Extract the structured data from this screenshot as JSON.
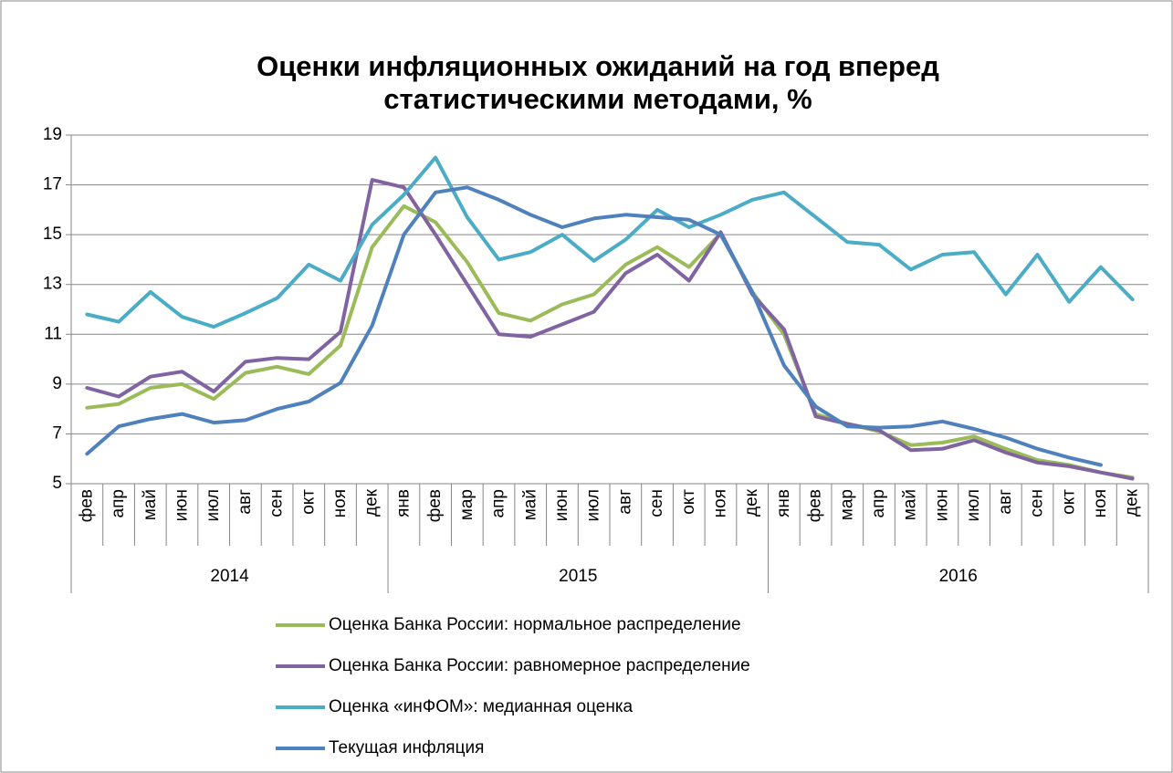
{
  "chart_data": {
    "type": "line",
    "title": [
      "Оценки инфляционных ожиданий на год вперед",
      "статистическими методами, %"
    ],
    "category_groups": [
      {
        "label": "2014",
        "categories": [
          "фев",
          "апр",
          "май",
          "июн",
          "июл",
          "авг",
          "сен",
          "окт",
          "ноя",
          "дек"
        ]
      },
      {
        "label": "2015",
        "categories": [
          "янв",
          "фев",
          "мар",
          "апр",
          "май",
          "июн",
          "июл",
          "авг",
          "сен",
          "окт",
          "ноя",
          "дек"
        ]
      },
      {
        "label": "2016",
        "categories": [
          "янв",
          "фев",
          "мар",
          "апр",
          "май",
          "июн",
          "июл",
          "авг",
          "сен",
          "окт",
          "ноя",
          "дек"
        ]
      }
    ],
    "ylim": [
      5,
      19
    ],
    "yticks": [
      5,
      7,
      9,
      11,
      13,
      15,
      17,
      19
    ],
    "grid": true,
    "legend": "bottom",
    "series": [
      {
        "name": "Оценка Банка России: нормальное распределение",
        "color": "#9bbb59",
        "values": [
          8.05,
          8.2,
          8.85,
          9.0,
          8.4,
          9.45,
          9.7,
          9.4,
          10.55,
          14.5,
          16.15,
          15.5,
          13.9,
          11.85,
          11.55,
          12.2,
          12.6,
          13.8,
          14.5,
          13.7,
          15.05,
          12.7,
          11.0,
          7.8,
          7.4,
          7.1,
          6.55,
          6.65,
          6.9,
          6.4,
          5.95,
          5.75,
          5.45,
          5.25
        ]
      },
      {
        "name": "Оценка Банка России: равномерное распределение",
        "color": "#8064a2",
        "values": [
          8.85,
          8.5,
          9.3,
          9.5,
          8.7,
          9.9,
          10.05,
          10.0,
          11.1,
          17.2,
          16.9,
          15.0,
          13.0,
          11.0,
          10.9,
          11.4,
          11.9,
          13.45,
          14.2,
          13.15,
          15.1,
          12.6,
          11.2,
          7.7,
          7.4,
          7.15,
          6.35,
          6.4,
          6.75,
          6.25,
          5.85,
          5.7,
          5.45,
          5.2
        ]
      },
      {
        "name": "Оценка «инФОМ»: медианная оценка",
        "color": "#4bacc6",
        "values": [
          11.8,
          11.5,
          12.7,
          11.7,
          11.3,
          11.85,
          12.45,
          13.8,
          13.15,
          15.4,
          16.6,
          18.1,
          15.7,
          14.0,
          14.3,
          15.0,
          13.95,
          14.8,
          16.0,
          15.3,
          15.8,
          16.4,
          16.7,
          15.7,
          14.7,
          14.6,
          13.6,
          14.2,
          14.3,
          12.6,
          14.2,
          12.3,
          13.7,
          12.4
        ]
      },
      {
        "name": "Текущая инфляция",
        "color": "#4f81bd",
        "values": [
          6.2,
          7.3,
          7.6,
          7.8,
          7.45,
          7.55,
          8.0,
          8.3,
          9.05,
          11.35,
          15.0,
          16.7,
          16.9,
          16.4,
          15.8,
          15.3,
          15.65,
          15.8,
          15.7,
          15.6,
          15.0,
          12.7,
          9.75,
          8.1,
          7.3,
          7.25,
          7.3,
          7.5,
          7.2,
          6.85,
          6.4,
          6.05,
          5.75,
          null
        ]
      }
    ]
  }
}
